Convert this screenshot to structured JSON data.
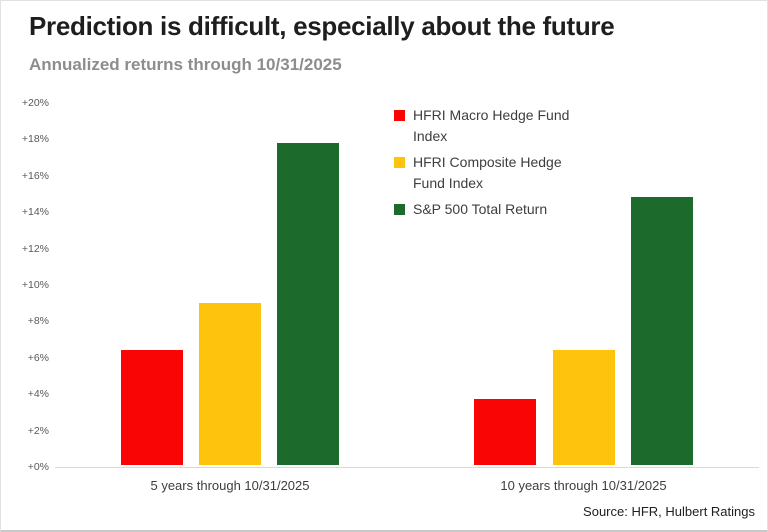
{
  "page": {
    "title": "Prediction is difficult, especially about the future",
    "subtitle": "Annualized returns through 10/31/2025",
    "source": "Source: HFR, Hulbert Ratings"
  },
  "colors": {
    "red": "#f90505",
    "yellow": "#fec40d",
    "green": "#1c6b2d",
    "axis_line": "#d9d9d9",
    "title_text": "#1e1e1e",
    "subtitle_text": "#8d8d8d",
    "tick_text": "#595959",
    "label_text": "#3e3e3e"
  },
  "chart_data": {
    "type": "bar",
    "title": "Prediction is difficult, especially about the future",
    "subtitle": "Annualized returns through 10/31/2025",
    "categories": [
      "5 years through 10/31/2025",
      "10 years through 10/31/2025"
    ],
    "series": [
      {
        "name": "HFRI Macro Hedge Fund Index",
        "color": "#f90505",
        "values": [
          6.3,
          3.6
        ]
      },
      {
        "name": "HFRI Composite Hedge Fund Index",
        "color": "#fec40d",
        "values": [
          8.9,
          6.3
        ]
      },
      {
        "name": "S&P 500 Total Return",
        "color": "#1c6b2d",
        "values": [
          17.7,
          14.7
        ]
      }
    ],
    "ylim": [
      0,
      20
    ],
    "ytick_step": 2,
    "yticks": [
      "+0%",
      "+2%",
      "+4%",
      "+6%",
      "+8%",
      "+10%",
      "+12%",
      "+14%",
      "+16%",
      "+18%",
      "+20%"
    ],
    "grid": false,
    "legend_position": "top-right",
    "source": "Source: HFR, Hulbert Ratings"
  }
}
